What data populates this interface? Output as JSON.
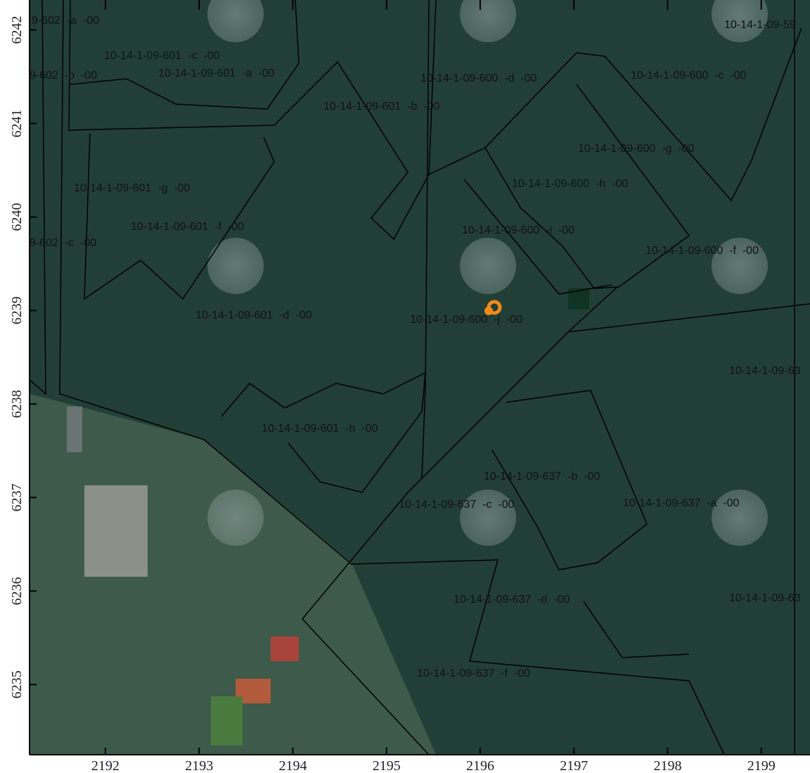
{
  "map": {
    "xlim": [
      2191.19,
      2199.52
    ],
    "ylim": [
      6234.25,
      6242.32
    ],
    "xticks": [
      2192,
      2193,
      2194,
      2195,
      2196,
      2197,
      2198,
      2199
    ],
    "yticks": [
      6235,
      6236,
      6237,
      6238,
      6239,
      6240,
      6241,
      6242
    ],
    "labels": [
      "9-602  -a  -00",
      "10-14-1-09-601  -c  -00",
      "9-602  -b  -00",
      "10-14-1-09-601  -a  -00",
      "10-14-1-09-600  -d  -00",
      "10-14-1-09-600  -c  -00",
      "10-14-1-09-601  -b  -00",
      "10-14-1-09-59",
      "10-14-1-09-600  -g  -00",
      "10-14-1-09-601  -g  -00",
      "10-14-1-09-600  -h  -00",
      "10-14-1-09-601  -f  -00",
      "10-14-1-09-600  -i  -00",
      "9-602  -c  -00",
      "10-14-1-09-600  -f  -00",
      "10-14-1-09-601  -d  -00",
      "10-14-1-09-600  -j  -00",
      "10-14-1-09-63",
      "10-14-1-09-601  -h  -00",
      "10-14-1-09-637  -b  -00",
      "10-14-1-09-637  -c  -00",
      "10-14-1-09-637  -a  -00",
      "10-14-1-09-637  -d  -00",
      "10-14-1-09-63",
      "10-14-1-09-637  -f  -00"
    ]
  }
}
